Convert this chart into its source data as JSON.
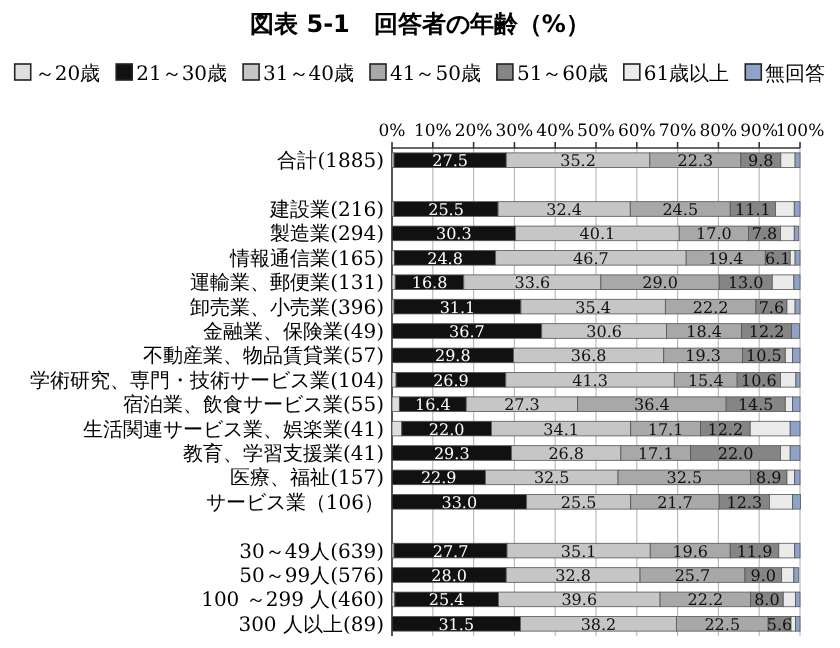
{
  "chart_data": {
    "type": "bar",
    "orientation": "horizontal",
    "stacked": true,
    "title": "図表 5-1　回答者の年齢（%）",
    "categories": [
      "合計(1885)",
      null,
      "建設業(216)",
      "製造業(294)",
      "情報通信業(165)",
      "運輸業、郵便業(131)",
      "卸売業、小売業(396)",
      "金融業、保険業(49)",
      "不動産業、物品賃貸業(57)",
      "学術研究、専門・技術サービス業(104)",
      "宿泊業、飲食サービス業(55)",
      "生活関連サービス業、娯楽業(41)",
      "教育、学習支援業(41)",
      "医療、福祉(157)",
      "サービス業（106）",
      null,
      "30～49人(639)",
      "50～99人(576)",
      "100 ～299 人(460)",
      "300 人以上(89)"
    ],
    "series": [
      {
        "name": "～20歳",
        "color": "#dfdfdf",
        "values": [
          0.5,
          null,
          0.5,
          null,
          0.6,
          0.8,
          0.5,
          0,
          0,
          1.0,
          1.8,
          2.4,
          0,
          0,
          0,
          null,
          0.5,
          null,
          0.7,
          0
        ]
      },
      {
        "name": "21～30歳",
        "color": "#111111",
        "values": [
          27.5,
          null,
          25.5,
          30.3,
          24.8,
          16.8,
          31.1,
          36.7,
          29.8,
          26.9,
          16.4,
          22.0,
          29.3,
          22.9,
          33.0,
          null,
          27.7,
          28.0,
          25.4,
          31.5
        ],
        "value_labels": [
          "27.5",
          null,
          "25.5",
          "30.3",
          "24.8",
          "16.8",
          "31.1",
          "36.7",
          "29.8",
          "26.9",
          "16.4",
          "22.0",
          "29.3",
          "22.9",
          "33.0",
          null,
          "27.7",
          "28.0",
          "25.4",
          "31.5"
        ]
      },
      {
        "name": "31～40歳",
        "color": "#c6c6c6",
        "values": [
          35.2,
          null,
          32.4,
          40.1,
          46.7,
          33.6,
          35.4,
          30.6,
          36.8,
          41.3,
          27.3,
          34.1,
          26.8,
          32.5,
          25.5,
          null,
          35.1,
          32.8,
          39.6,
          38.2
        ],
        "value_labels": [
          "35.2",
          null,
          "32.4",
          "40.1",
          "46.7",
          "33.6",
          "35.4",
          "30.6",
          "36.8",
          "41.3",
          "27.3",
          "34.1",
          "26.8",
          "32.5",
          "25.5",
          null,
          "35.1",
          "32.8",
          "39.6",
          "38.2"
        ]
      },
      {
        "name": "41～50歳",
        "color": "#a8a8a8",
        "values": [
          22.3,
          null,
          24.5,
          17.0,
          19.4,
          29.0,
          22.2,
          18.4,
          19.3,
          15.4,
          36.4,
          17.1,
          17.1,
          32.5,
          21.7,
          null,
          19.6,
          25.7,
          22.2,
          22.5
        ],
        "value_labels": [
          "22.3",
          null,
          "24.5",
          "17.0",
          "19.4",
          "29.0",
          "22.2",
          "18.4",
          "19.3",
          "15.4",
          "36.4",
          "17.1",
          "17.1",
          "32.5",
          "21.7",
          null,
          "19.6",
          "25.7",
          "22.2",
          "22.5"
        ]
      },
      {
        "name": "51～60歳",
        "color": "#858585",
        "values": [
          9.8,
          null,
          11.1,
          7.8,
          6.1,
          13.0,
          7.6,
          12.2,
          10.5,
          10.6,
          14.5,
          12.2,
          22.0,
          8.9,
          12.3,
          null,
          11.9,
          9.0,
          8.0,
          5.6
        ],
        "value_labels": [
          "9.8",
          null,
          "11.1",
          "7.8",
          "6.1",
          "13.0",
          "7.6",
          "12.2",
          "10.5",
          "10.6",
          "14.5",
          "12.2",
          "22.0",
          "8.9",
          "12.3",
          null,
          "11.9",
          "9.0",
          "8.0",
          "5.6"
        ]
      },
      {
        "name": "61歳以上",
        "color": "#ebebeb",
        "values": [
          3.5,
          null,
          4.6,
          3.4,
          1.2,
          5.3,
          2.0,
          0,
          1.8,
          3.8,
          1.8,
          9.8,
          2.4,
          1.9,
          5.7,
          null,
          3.9,
          3.0,
          3.0,
          1.1
        ]
      },
      {
        "name": "無回答",
        "color": "#8fa3c8",
        "values": [
          1.2,
          null,
          1.4,
          1.1,
          1.2,
          1.5,
          1.2,
          2.0,
          1.8,
          1.0,
          1.8,
          2.4,
          2.4,
          1.3,
          1.9,
          null,
          1.3,
          1.2,
          1.1,
          1.1
        ]
      }
    ],
    "xlim": [
      0,
      100
    ],
    "xticks": [
      {
        "value": 0,
        "label": "0%"
      },
      {
        "value": 10,
        "label": "10%"
      },
      {
        "value": 20,
        "label": "20%"
      },
      {
        "value": 30,
        "label": "30%"
      },
      {
        "value": 40,
        "label": "40%"
      },
      {
        "value": 50,
        "label": "50%"
      },
      {
        "value": 60,
        "label": "60%"
      },
      {
        "value": 70,
        "label": "70%"
      },
      {
        "value": 80,
        "label": "80%"
      },
      {
        "value": 90,
        "label": "90%"
      },
      {
        "value": 100,
        "label": "100%"
      }
    ],
    "grid": "x",
    "legend": "top"
  }
}
